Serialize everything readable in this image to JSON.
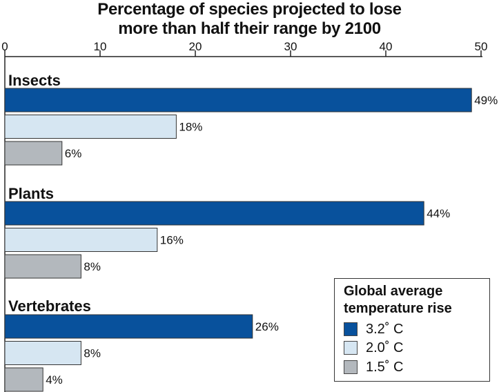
{
  "title_lines": [
    "Percentage of species projected to lose",
    "more than half their range by 2100"
  ],
  "colors": {
    "series_3_2": "#08519c",
    "series_2_0": "#d6e6f2",
    "series_1_5": "#b3b8bd",
    "axis": "#222222"
  },
  "chart_data": {
    "type": "bar",
    "orientation": "horizontal",
    "title": "Percentage of species projected to lose more than half their range by 2100",
    "categories": [
      "Insects",
      "Plants",
      "Vertebrates"
    ],
    "series": [
      {
        "name": "3.2˚ C",
        "values": [
          49,
          44,
          26
        ],
        "labels": [
          "49%",
          "44%",
          "26%"
        ]
      },
      {
        "name": "2.0˚ C",
        "values": [
          18,
          16,
          8
        ],
        "labels": [
          "18%",
          "16%",
          "8%"
        ]
      },
      {
        "name": "1.5˚ C",
        "values": [
          6,
          8,
          4
        ],
        "labels": [
          "6%",
          "8%",
          "4%"
        ]
      }
    ],
    "x_ticks": [
      "0",
      "10",
      "20",
      "30",
      "40",
      "50"
    ],
    "xlim": [
      0,
      50
    ],
    "xlabel": "",
    "ylabel": "",
    "grid": false,
    "legend": {
      "title": "Global average temperature rise",
      "position": "bottom-right"
    }
  },
  "legend_title_lines": [
    "Global average",
    "temperature rise"
  ]
}
